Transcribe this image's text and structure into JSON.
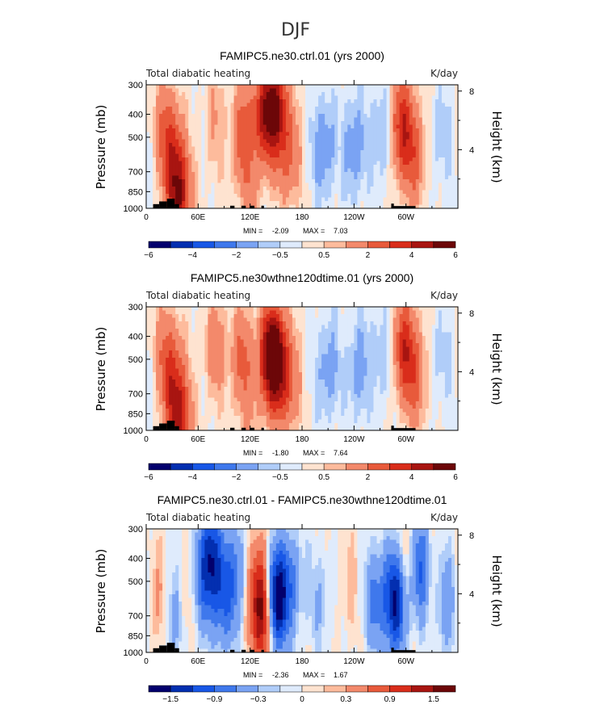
{
  "figure_title": "DJF",
  "palette": [
    "#03006d",
    "#032fb0",
    "#1857e6",
    "#3f78ec",
    "#7aa3f3",
    "#b0cdf9",
    "#dfebfc",
    "#fee3d0",
    "#fdbb9c",
    "#f3896b",
    "#e85a3b",
    "#d92d1b",
    "#a81511",
    "#6c0708"
  ],
  "chart_data": [
    {
      "type": "heatmap",
      "title": "FAMIPC5.ne30.ctrl.01 (yrs 2000)",
      "variable": "Total diabatic heating",
      "units": "K/day",
      "ylabel": "Pressure (mb)",
      "ylabel_right": "Height (km)",
      "xticks": [
        "0",
        "60E",
        "120E",
        "180",
        "120W",
        "60W"
      ],
      "xtick_values": [
        0,
        60,
        120,
        180,
        240,
        300
      ],
      "xlim": [
        0,
        360
      ],
      "yticks": [
        "300",
        "400",
        "500",
        "700",
        "850",
        "1000"
      ],
      "ytick_values": [
        300,
        400,
        500,
        700,
        850,
        1000
      ],
      "ylim": [
        1000,
        300
      ],
      "yticks_right": [
        "8",
        "4"
      ],
      "ytick_right_values": [
        8,
        4
      ],
      "stats": {
        "min_label": "MIN =",
        "min": "-2.09",
        "max_label": "MAX =",
        "max": "7.03"
      },
      "colorbar_levels": [
        "-6",
        "-4",
        "-2",
        "-0.5",
        "0.5",
        "2",
        "4",
        "6"
      ],
      "colorbar_level_values": [
        -6,
        -5,
        -4,
        -3,
        -2,
        -1,
        -0.5,
        0,
        0.5,
        1,
        2,
        3,
        4,
        5,
        6
      ],
      "scale": 1.0,
      "max_value": 7.03,
      "min_value": -2.09,
      "features": [
        {
          "lon": 30,
          "lev": 600,
          "amp": 2.2
        },
        {
          "lon": 38,
          "lev": 900,
          "amp": 4.5
        },
        {
          "lon": 22,
          "lev": 450,
          "amp": 1.6
        },
        {
          "lon": 80,
          "lev": 420,
          "amp": 1.0
        },
        {
          "lon": 112,
          "lev": 500,
          "amp": 2.6
        },
        {
          "lon": 135,
          "lev": 400,
          "amp": 3.5
        },
        {
          "lon": 150,
          "lev": 380,
          "amp": 4.8
        },
        {
          "lon": 165,
          "lev": 600,
          "amp": 2.0
        },
        {
          "lon": 205,
          "lev": 550,
          "amp": -1.7
        },
        {
          "lon": 240,
          "lev": 550,
          "amp": -1.6
        },
        {
          "lon": 272,
          "lev": 480,
          "amp": -1.2
        },
        {
          "lon": 295,
          "lev": 450,
          "amp": 3.6
        },
        {
          "lon": 310,
          "lev": 600,
          "amp": 2.2
        },
        {
          "lon": 340,
          "lev": 500,
          "amp": -0.8
        },
        {
          "lon": 120,
          "lev": 950,
          "amp": 0.8
        }
      ],
      "topography": [
        {
          "lon0": 8,
          "lon1": 15,
          "lev": 960
        },
        {
          "lon0": 15,
          "lon1": 24,
          "lev": 935
        },
        {
          "lon0": 24,
          "lon1": 33,
          "lev": 910
        },
        {
          "lon0": 33,
          "lon1": 38,
          "lev": 960
        },
        {
          "lon0": 97,
          "lon1": 102,
          "lev": 975
        },
        {
          "lon0": 110,
          "lon1": 115,
          "lev": 975
        },
        {
          "lon0": 120,
          "lon1": 125,
          "lev": 975
        },
        {
          "lon0": 133,
          "lon1": 136,
          "lev": 975
        },
        {
          "lon0": 283,
          "lon1": 286,
          "lev": 955
        },
        {
          "lon0": 283,
          "lon1": 311,
          "lev": 978
        }
      ]
    },
    {
      "type": "heatmap",
      "title": "FAMIPC5.ne30wthne120dtime.01 (yrs 2000)",
      "variable": "Total diabatic heating",
      "units": "K/day",
      "ylabel": "Pressure (mb)",
      "ylabel_right": "Height (km)",
      "xticks": [
        "0",
        "60E",
        "120E",
        "180",
        "120W",
        "60W"
      ],
      "xtick_values": [
        0,
        60,
        120,
        180,
        240,
        300
      ],
      "xlim": [
        0,
        360
      ],
      "yticks": [
        "300",
        "400",
        "500",
        "700",
        "850",
        "1000"
      ],
      "ytick_values": [
        300,
        400,
        500,
        700,
        850,
        1000
      ],
      "ylim": [
        1000,
        300
      ],
      "yticks_right": [
        "8",
        "4"
      ],
      "ytick_right_values": [
        8,
        4
      ],
      "stats": {
        "min_label": "MIN =",
        "min": "-1.80",
        "max_label": "MAX =",
        "max": "7.64"
      },
      "colorbar_levels": [
        "-6",
        "-4",
        "-2",
        "-0.5",
        "0.5",
        "2",
        "4",
        "6"
      ],
      "colorbar_level_values": [
        -6,
        -5,
        -4,
        -3,
        -2,
        -1,
        -0.5,
        0,
        0.5,
        1,
        2,
        3,
        4,
        5,
        6
      ],
      "scale": 1.0,
      "max_value": 7.64,
      "min_value": -1.8,
      "features": [
        {
          "lon": 30,
          "lev": 600,
          "amp": 2.0
        },
        {
          "lon": 38,
          "lev": 900,
          "amp": 4.0
        },
        {
          "lon": 22,
          "lev": 450,
          "amp": 1.4
        },
        {
          "lon": 80,
          "lev": 450,
          "amp": 1.6
        },
        {
          "lon": 110,
          "lev": 500,
          "amp": 2.2
        },
        {
          "lon": 140,
          "lev": 480,
          "amp": 3.0
        },
        {
          "lon": 150,
          "lev": 500,
          "amp": 5.5
        },
        {
          "lon": 165,
          "lev": 650,
          "amp": 2.0
        },
        {
          "lon": 210,
          "lev": 550,
          "amp": -1.5
        },
        {
          "lon": 245,
          "lev": 550,
          "amp": -1.4
        },
        {
          "lon": 272,
          "lev": 480,
          "amp": -1.0
        },
        {
          "lon": 298,
          "lev": 450,
          "amp": 3.4
        },
        {
          "lon": 312,
          "lev": 600,
          "amp": 2.0
        },
        {
          "lon": 340,
          "lev": 500,
          "amp": -0.7
        },
        {
          "lon": 120,
          "lev": 950,
          "amp": 0.7
        }
      ],
      "topography": [
        {
          "lon0": 8,
          "lon1": 15,
          "lev": 960
        },
        {
          "lon0": 15,
          "lon1": 24,
          "lev": 935
        },
        {
          "lon0": 24,
          "lon1": 33,
          "lev": 910
        },
        {
          "lon0": 33,
          "lon1": 38,
          "lev": 960
        },
        {
          "lon0": 97,
          "lon1": 102,
          "lev": 975
        },
        {
          "lon0": 110,
          "lon1": 115,
          "lev": 975
        },
        {
          "lon0": 120,
          "lon1": 125,
          "lev": 975
        },
        {
          "lon0": 133,
          "lon1": 136,
          "lev": 975
        },
        {
          "lon0": 283,
          "lon1": 286,
          "lev": 955
        },
        {
          "lon0": 283,
          "lon1": 311,
          "lev": 978
        }
      ]
    },
    {
      "type": "heatmap",
      "title": "FAMIPC5.ne30.ctrl.01 - FAMIPC5.ne30wthne120dtime.01",
      "variable": "Total diabatic heating",
      "units": "K/day",
      "ylabel": "Pressure (mb)",
      "ylabel_right": "Height (km)",
      "xticks": [
        "0",
        "60E",
        "120E",
        "180",
        "120W",
        "60W"
      ],
      "xtick_values": [
        0,
        60,
        120,
        180,
        240,
        300
      ],
      "xlim": [
        0,
        360
      ],
      "yticks": [
        "300",
        "400",
        "500",
        "700",
        "850",
        "1000"
      ],
      "ytick_values": [
        300,
        400,
        500,
        700,
        850,
        1000
      ],
      "ylim": [
        1000,
        300
      ],
      "yticks_right": [
        "8",
        "4"
      ],
      "ytick_right_values": [
        8,
        4
      ],
      "stats": {
        "min_label": "MIN =",
        "min": "-2.36",
        "max_label": "MAX =",
        "max": "1.67"
      },
      "colorbar_levels": [
        "-1.5",
        "-0.9",
        "-0.3",
        "0",
        "0.3",
        "0.9",
        "1.5"
      ],
      "colorbar_level_values": [
        -1.8,
        -1.5,
        -1.2,
        -0.9,
        -0.6,
        -0.3,
        -0.15,
        0,
        0.15,
        0.3,
        0.6,
        0.9,
        1.2,
        1.5,
        1.8
      ],
      "scale": 0.3,
      "max_value": 1.67,
      "min_value": -2.36,
      "features": [
        {
          "lon": 15,
          "lev": 600,
          "amp": 0.35
        },
        {
          "lon": 32,
          "lev": 700,
          "amp": -0.45
        },
        {
          "lon": 48,
          "lev": 600,
          "amp": 0.3
        },
        {
          "lon": 62,
          "lev": 550,
          "amp": -0.5
        },
        {
          "lon": 75,
          "lev": 400,
          "amp": -1.4
        },
        {
          "lon": 90,
          "lev": 600,
          "amp": -0.8
        },
        {
          "lon": 105,
          "lev": 450,
          "amp": -0.6
        },
        {
          "lon": 128,
          "lev": 500,
          "amp": 0.7
        },
        {
          "lon": 135,
          "lev": 700,
          "amp": 1.5
        },
        {
          "lon": 150,
          "lev": 600,
          "amp": -2.0
        },
        {
          "lon": 168,
          "lev": 500,
          "amp": -0.6
        },
        {
          "lon": 200,
          "lev": 600,
          "amp": -0.3
        },
        {
          "lon": 235,
          "lev": 500,
          "amp": 0.2
        },
        {
          "lon": 265,
          "lev": 600,
          "amp": -0.7
        },
        {
          "lon": 288,
          "lev": 600,
          "amp": -1.6
        },
        {
          "lon": 300,
          "lev": 450,
          "amp": 0.4
        },
        {
          "lon": 318,
          "lev": 450,
          "amp": -1.1
        },
        {
          "lon": 330,
          "lev": 500,
          "amp": 0.4
        },
        {
          "lon": 345,
          "lev": 600,
          "amp": -0.6
        }
      ],
      "topography": [
        {
          "lon0": 8,
          "lon1": 15,
          "lev": 960
        },
        {
          "lon0": 15,
          "lon1": 24,
          "lev": 935
        },
        {
          "lon0": 24,
          "lon1": 33,
          "lev": 910
        },
        {
          "lon0": 33,
          "lon1": 38,
          "lev": 960
        },
        {
          "lon0": 97,
          "lon1": 102,
          "lev": 975
        },
        {
          "lon0": 110,
          "lon1": 115,
          "lev": 975
        },
        {
          "lon0": 120,
          "lon1": 125,
          "lev": 975
        },
        {
          "lon0": 133,
          "lon1": 136,
          "lev": 975
        },
        {
          "lon0": 283,
          "lon1": 286,
          "lev": 955
        },
        {
          "lon0": 283,
          "lon1": 311,
          "lev": 978
        }
      ]
    }
  ]
}
